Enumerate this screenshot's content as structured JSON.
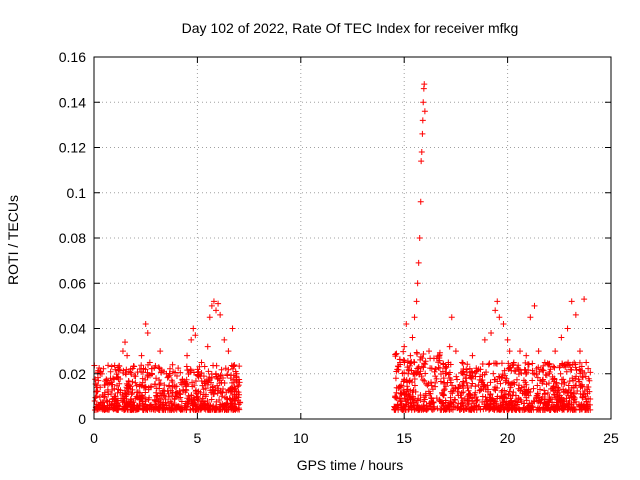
{
  "chart_data": {
    "type": "scatter",
    "title": "Day 102 of 2022, Rate Of TEC Index for receiver mfkg",
    "xlabel": "GPS time / hours",
    "ylabel": "ROTI / TECUs",
    "xlim": [
      0,
      25
    ],
    "ylim": [
      0,
      0.16
    ],
    "xticks": [
      0,
      5,
      10,
      15,
      20,
      25
    ],
    "xtick_labels": [
      "0",
      "5",
      "10",
      "15",
      "20",
      "25"
    ],
    "yticks": [
      0,
      0.02,
      0.04,
      0.06,
      0.08,
      0.1,
      0.12,
      0.14,
      0.16
    ],
    "ytick_labels": [
      "0",
      "0.02",
      "0.04",
      "0.06",
      "0.08",
      "0.1",
      "0.12",
      "0.14",
      "0.16"
    ],
    "grid": true,
    "marker": "plus",
    "color": "#ff0000",
    "segments": [
      {
        "x_range": [
          0.0,
          7.1
        ],
        "base_range": [
          0.004,
          0.024
        ]
      },
      {
        "x_range": [
          14.5,
          16.8
        ],
        "base_range": [
          0.004,
          0.03
        ]
      },
      {
        "x_range": [
          16.8,
          24.0
        ],
        "base_range": [
          0.004,
          0.025
        ]
      }
    ],
    "series": [
      {
        "points": [
          [
            0.1,
            0.012
          ],
          [
            0.3,
            0.02
          ],
          [
            0.5,
            0.015
          ],
          [
            0.8,
            0.018
          ],
          [
            1.0,
            0.01
          ],
          [
            1.2,
            0.022
          ],
          [
            1.4,
            0.03
          ],
          [
            1.5,
            0.034
          ],
          [
            1.6,
            0.028
          ],
          [
            2.0,
            0.016
          ],
          [
            2.3,
            0.028
          ],
          [
            2.5,
            0.042
          ],
          [
            2.6,
            0.038
          ],
          [
            2.7,
            0.025
          ],
          [
            3.0,
            0.018
          ],
          [
            3.2,
            0.03
          ],
          [
            3.5,
            0.02
          ],
          [
            3.8,
            0.024
          ],
          [
            4.2,
            0.016
          ],
          [
            4.5,
            0.028
          ],
          [
            4.7,
            0.035
          ],
          [
            4.8,
            0.04
          ],
          [
            4.9,
            0.037
          ],
          [
            5.2,
            0.025
          ],
          [
            5.5,
            0.032
          ],
          [
            5.6,
            0.045
          ],
          [
            5.7,
            0.05
          ],
          [
            5.8,
            0.052
          ],
          [
            5.9,
            0.048
          ],
          [
            6.0,
            0.051
          ],
          [
            6.1,
            0.046
          ],
          [
            6.3,
            0.035
          ],
          [
            6.5,
            0.03
          ],
          [
            6.7,
            0.04
          ],
          [
            6.9,
            0.02
          ],
          [
            7.0,
            0.015
          ],
          [
            14.6,
            0.018
          ],
          [
            14.8,
            0.025
          ],
          [
            15.0,
            0.032
          ],
          [
            15.1,
            0.042
          ],
          [
            15.3,
            0.028
          ],
          [
            15.4,
            0.036
          ],
          [
            15.5,
            0.045
          ],
          [
            15.6,
            0.052
          ],
          [
            15.65,
            0.06
          ],
          [
            15.7,
            0.069
          ],
          [
            15.75,
            0.08
          ],
          [
            15.8,
            0.096
          ],
          [
            15.82,
            0.114
          ],
          [
            15.85,
            0.118
          ],
          [
            15.88,
            0.126
          ],
          [
            15.9,
            0.132
          ],
          [
            15.92,
            0.14
          ],
          [
            15.95,
            0.146
          ],
          [
            15.97,
            0.148
          ],
          [
            16.0,
            0.136
          ],
          [
            16.2,
            0.03
          ],
          [
            16.5,
            0.022
          ],
          [
            17.0,
            0.02
          ],
          [
            17.2,
            0.032
          ],
          [
            17.3,
            0.045
          ],
          [
            17.5,
            0.03
          ],
          [
            17.8,
            0.025
          ],
          [
            18.0,
            0.018
          ],
          [
            18.3,
            0.028
          ],
          [
            18.6,
            0.022
          ],
          [
            18.9,
            0.035
          ],
          [
            19.2,
            0.038
          ],
          [
            19.4,
            0.048
          ],
          [
            19.5,
            0.052
          ],
          [
            19.6,
            0.045
          ],
          [
            19.8,
            0.042
          ],
          [
            20.0,
            0.035
          ],
          [
            20.1,
            0.03
          ],
          [
            20.3,
            0.025
          ],
          [
            20.6,
            0.03
          ],
          [
            20.9,
            0.028
          ],
          [
            21.1,
            0.045
          ],
          [
            21.3,
            0.05
          ],
          [
            21.5,
            0.03
          ],
          [
            21.8,
            0.025
          ],
          [
            22.0,
            0.02
          ],
          [
            22.3,
            0.03
          ],
          [
            22.6,
            0.036
          ],
          [
            22.9,
            0.04
          ],
          [
            23.1,
            0.052
          ],
          [
            23.3,
            0.046
          ],
          [
            23.5,
            0.03
          ],
          [
            23.7,
            0.053
          ],
          [
            23.8,
            0.025
          ]
        ]
      }
    ]
  }
}
